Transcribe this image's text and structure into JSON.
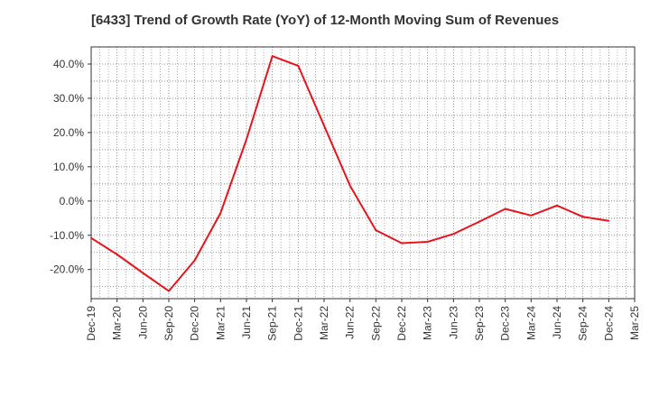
{
  "chart_data": {
    "type": "line",
    "title": "[6433]  Trend of Growth Rate (YoY) of 12-Month Moving Sum of Revenues",
    "xlabel": "",
    "ylabel": "",
    "ylim": [
      -28.5,
      45
    ],
    "yticks": [
      40,
      30,
      20,
      10,
      0,
      -10,
      -20
    ],
    "ytick_labels": [
      "40.0%",
      "30.0%",
      "20.0%",
      "10.0%",
      "0.0%",
      "-10.0%",
      "-20.0%"
    ],
    "categories": [
      "Dec-19",
      "Mar-20",
      "Jun-20",
      "Sep-20",
      "Dec-20",
      "Mar-21",
      "Jun-21",
      "Sep-21",
      "Dec-21",
      "Mar-22",
      "Jun-22",
      "Sep-22",
      "Dec-22",
      "Mar-23",
      "Jun-23",
      "Sep-23",
      "Dec-23",
      "Mar-24",
      "Jun-24",
      "Sep-24",
      "Dec-24",
      "Mar-25"
    ],
    "series": [
      {
        "color": "#e8141c",
        "values": [
          -10.8,
          -15.6,
          -21.0,
          -26.3,
          -17.3,
          -3.5,
          18.0,
          42.3,
          39.5,
          22.0,
          4.5,
          -8.5,
          -12.3,
          -11.9,
          -9.6,
          -6.0,
          -2.3,
          -4.2,
          -1.3,
          -4.6,
          -5.8,
          null
        ]
      }
    ],
    "grid": true,
    "legend": "none"
  }
}
